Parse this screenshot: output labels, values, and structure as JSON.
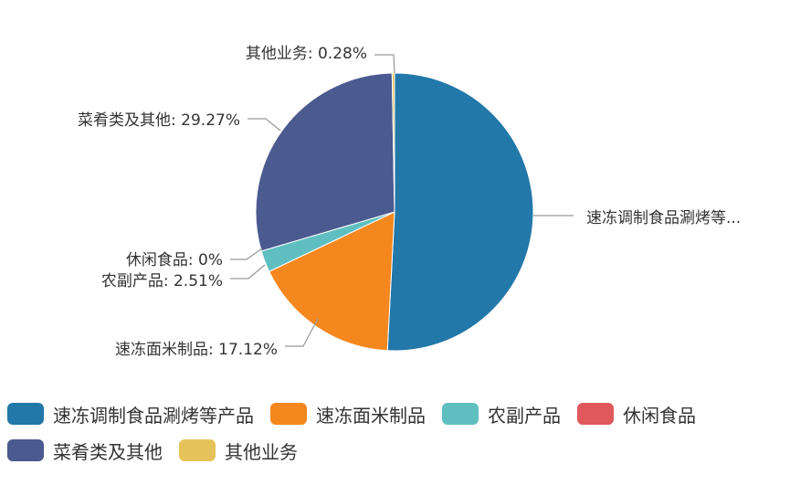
{
  "chart_data": {
    "type": "pie",
    "slices": [
      {
        "name": "速冻调制食品涮烤等产品",
        "value": 50.82,
        "color": "#2278a8",
        "label": "速冻调制食品涮烤等..."
      },
      {
        "name": "速冻面米制品",
        "value": 17.12,
        "color": "#f5871f",
        "label": "速冻面米制品: 17.12%"
      },
      {
        "name": "农副产品",
        "value": 2.51,
        "color": "#5fbfc0",
        "label": "农副产品: 2.51%"
      },
      {
        "name": "休闲食品",
        "value": 0,
        "color": "#e0585c",
        "label": "休闲食品: 0%"
      },
      {
        "name": "菜肴类及其他",
        "value": 29.27,
        "color": "#4b5a8f",
        "label": "菜肴类及其他: 29.27%"
      },
      {
        "name": "其他业务",
        "value": 0.28,
        "color": "#e6c35a",
        "label": "其他业务: 0.28%"
      }
    ],
    "legend_position": "bottom-left"
  }
}
